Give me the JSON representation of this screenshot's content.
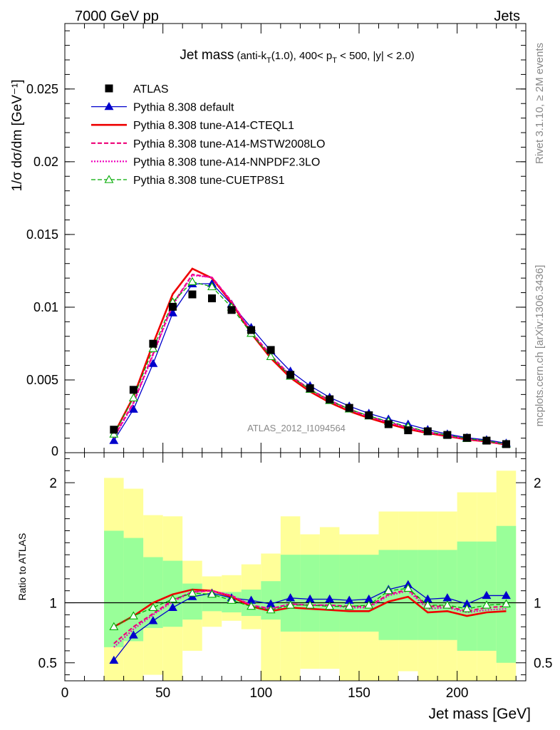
{
  "header": {
    "left": "7000 GeV pp",
    "right": "Jets"
  },
  "side_labels": {
    "rivet": "Rivet 3.1.10, ≥ 2M events",
    "mcplots": "mcplots.cern.ch [arXiv:1306.3436]"
  },
  "title": {
    "main": "Jet mass",
    "p1": "(anti-k",
    "sub_T1": "T",
    "p2": "(1.0), 400< p",
    "sub_T2": "T",
    "p3": " < 500, |y| < 2.0)"
  },
  "watermark": "ATLAS_2012_I1094564",
  "colors": {
    "atlas": "#000000",
    "default": "#0000cc",
    "cteql1": "#ee0000",
    "mstw": "#ee0077",
    "nnpdf": "#ee00bb",
    "cuetp8s1": "#00aa00",
    "band_inner": "#99ff99",
    "band_outer": "#ffff99"
  },
  "chart_data": [
    {
      "type": "line",
      "title": "Jet mass (anti-kT(1.0), 400< pT < 500, |y| < 2.0)",
      "ylabel": "1/σ dσ/dm [GeV⁻¹]",
      "xlim": [
        0,
        235
      ],
      "ylim": [
        0,
        0.0295
      ],
      "yticks": [
        0.005,
        0.01,
        0.015,
        0.02,
        0.025
      ],
      "ytick_labels": [
        "0.005",
        "0.01",
        "0.015",
        "0.02",
        "0.025"
      ],
      "ytick_zero_label": "0",
      "legend": [
        {
          "key": "atlas",
          "label": "ATLAS"
        },
        {
          "key": "default",
          "label": "Pythia 8.308 default"
        },
        {
          "key": "cteql1",
          "label": "Pythia 8.308 tune-A14-CTEQL1"
        },
        {
          "key": "mstw",
          "label": "Pythia 8.308 tune-A14-MSTW2008LO"
        },
        {
          "key": "nnpdf",
          "label": "Pythia 8.308 tune-A14-NNPDF2.3LO"
        },
        {
          "key": "cuetp8s1",
          "label": "Pythia 8.308 tune-CUETP8S1"
        }
      ],
      "x": [
        25,
        35,
        45,
        55,
        65,
        75,
        85,
        95,
        105,
        115,
        125,
        135,
        145,
        155,
        165,
        175,
        185,
        195,
        205,
        215,
        225
      ],
      "data": [
        0.00158,
        0.00432,
        0.00749,
        0.01003,
        0.01088,
        0.01061,
        0.00981,
        0.00843,
        0.00706,
        0.00535,
        0.00443,
        0.00367,
        0.00308,
        0.00257,
        0.00196,
        0.00154,
        0.00147,
        0.00122,
        0.00102,
        0.00083,
        0.00059
      ],
      "series": [
        {
          "key": "default",
          "name": "Pythia 8.308 default",
          "values": [
            0.00083,
            0.00298,
            0.00612,
            0.0096,
            0.0116,
            0.01162,
            0.0102,
            0.0086,
            0.007,
            0.0056,
            0.0046,
            0.0038,
            0.0032,
            0.0027,
            0.0023,
            0.00195,
            0.00158,
            0.00128,
            0.00103,
            0.00088,
            0.00065
          ]
        },
        {
          "key": "cteql1",
          "name": "Pythia 8.308 tune-A14-CTEQL1",
          "values": [
            0.00127,
            0.00385,
            0.00749,
            0.0109,
            0.01265,
            0.012,
            0.0103,
            0.0082,
            0.0065,
            0.00515,
            0.0042,
            0.00345,
            0.00285,
            0.00238,
            0.00198,
            0.00162,
            0.00135,
            0.00113,
            0.00091,
            0.00077,
            0.00055
          ]
        },
        {
          "key": "mstw",
          "name": "Pythia 8.308 tune-A14-MSTW2008LO",
          "values": [
            0.00105,
            0.00345,
            0.0068,
            0.0102,
            0.01225,
            0.01205,
            0.0104,
            0.0083,
            0.0067,
            0.0053,
            0.00435,
            0.0036,
            0.00298,
            0.0025,
            0.0021,
            0.00172,
            0.00142,
            0.00118,
            0.00095,
            0.0008,
            0.00057
          ]
        },
        {
          "key": "nnpdf",
          "name": "Pythia 8.308 tune-A14-NNPDF2.3LO",
          "values": [
            0.001,
            0.00338,
            0.00672,
            0.01015,
            0.0122,
            0.01205,
            0.01038,
            0.00828,
            0.00668,
            0.00528,
            0.00433,
            0.00358,
            0.00296,
            0.00248,
            0.00208,
            0.0017,
            0.0014,
            0.00117,
            0.00094,
            0.00078,
            0.00056
          ]
        },
        {
          "key": "cuetp8s1",
          "name": "Pythia 8.308 tune-CUETP8S1",
          "values": [
            0.00127,
            0.00376,
            0.00715,
            0.01035,
            0.01175,
            0.0114,
            0.01,
            0.0082,
            0.0066,
            0.00525,
            0.00435,
            0.00358,
            0.003,
            0.00252,
            0.00215,
            0.00178,
            0.00145,
            0.0012,
            0.00097,
            0.00081,
            0.00058
          ]
        }
      ]
    },
    {
      "type": "line",
      "ylabel": "Ratio to ATLAS",
      "xlabel": "Jet mass [GeV]",
      "xlim": [
        0,
        235
      ],
      "ylim": [
        0.35,
        2.25
      ],
      "yticks": [
        0.5,
        1,
        2
      ],
      "ytick_labels": [
        "0.5",
        "1",
        "2"
      ],
      "xticks": [
        0,
        50,
        100,
        150,
        200
      ],
      "xtick_labels": [
        "0",
        "50",
        "100",
        "150",
        "200"
      ],
      "bin_edges": [
        20,
        30,
        40,
        50,
        60,
        70,
        80,
        90,
        100,
        110,
        120,
        130,
        140,
        150,
        160,
        170,
        180,
        190,
        200,
        210,
        220,
        230
      ],
      "band_inner_lo": [
        0.63,
        0.68,
        0.79,
        0.8,
        0.86,
        0.93,
        0.92,
        0.89,
        0.86,
        0.76,
        0.76,
        0.76,
        0.76,
        0.76,
        0.69,
        0.69,
        0.69,
        0.69,
        0.6,
        0.6,
        0.5
      ],
      "band_inner_hi": [
        1.6,
        1.54,
        1.38,
        1.35,
        1.16,
        1.08,
        1.09,
        1.11,
        1.18,
        1.4,
        1.4,
        1.4,
        1.4,
        1.4,
        1.44,
        1.44,
        1.44,
        1.44,
        1.51,
        1.51,
        1.64
      ],
      "band_outer_lo": [
        0.35,
        0.35,
        0.4,
        0.35,
        0.6,
        0.8,
        0.85,
        0.78,
        0.35,
        0.35,
        0.45,
        0.45,
        0.35,
        0.35,
        0.35,
        0.43,
        0.35,
        0.35,
        0.35,
        0.35,
        0.35
      ],
      "band_outer_hi": [
        2.04,
        1.95,
        1.73,
        1.72,
        1.35,
        1.22,
        1.23,
        1.32,
        1.41,
        1.72,
        1.57,
        1.63,
        1.57,
        1.57,
        1.76,
        1.76,
        1.76,
        1.76,
        1.92,
        1.92,
        2.1
      ],
      "x": [
        25,
        35,
        45,
        55,
        65,
        75,
        85,
        95,
        105,
        115,
        125,
        135,
        145,
        155,
        165,
        175,
        185,
        195,
        205,
        215,
        225
      ],
      "series": [
        {
          "key": "default",
          "values": [
            0.52,
            0.73,
            0.85,
            0.96,
            1.05,
            1.08,
            1.04,
            1.02,
            0.99,
            1.04,
            1.03,
            1.03,
            1.02,
            1.03,
            1.11,
            1.15,
            1.03,
            1.04,
            0.99,
            1.06,
            1.06
          ]
        },
        {
          "key": "cteql1",
          "values": [
            0.8,
            0.89,
            1.0,
            1.07,
            1.11,
            1.1,
            1.05,
            0.97,
            0.93,
            0.96,
            0.95,
            0.94,
            0.93,
            0.93,
            1.01,
            1.05,
            0.92,
            0.93,
            0.89,
            0.92,
            0.93
          ]
        },
        {
          "key": "mstw",
          "values": [
            0.66,
            0.8,
            0.91,
            1.02,
            1.09,
            1.1,
            1.06,
            0.98,
            0.95,
            0.99,
            0.98,
            0.98,
            0.97,
            0.97,
            1.07,
            1.11,
            0.97,
            0.97,
            0.93,
            0.96,
            0.97
          ]
        },
        {
          "key": "nnpdf",
          "values": [
            0.63,
            0.78,
            0.9,
            1.01,
            1.09,
            1.1,
            1.06,
            0.98,
            0.95,
            0.99,
            0.98,
            0.98,
            0.96,
            0.96,
            1.06,
            1.1,
            0.95,
            0.96,
            0.92,
            0.94,
            0.95
          ]
        },
        {
          "key": "cuetp8s1",
          "values": [
            0.8,
            0.89,
            0.96,
            1.03,
            1.08,
            1.07,
            1.02,
            0.97,
            0.94,
            0.98,
            0.98,
            0.97,
            0.97,
            0.98,
            1.1,
            1.12,
            0.98,
            0.98,
            0.95,
            0.98,
            0.99
          ]
        }
      ]
    }
  ]
}
